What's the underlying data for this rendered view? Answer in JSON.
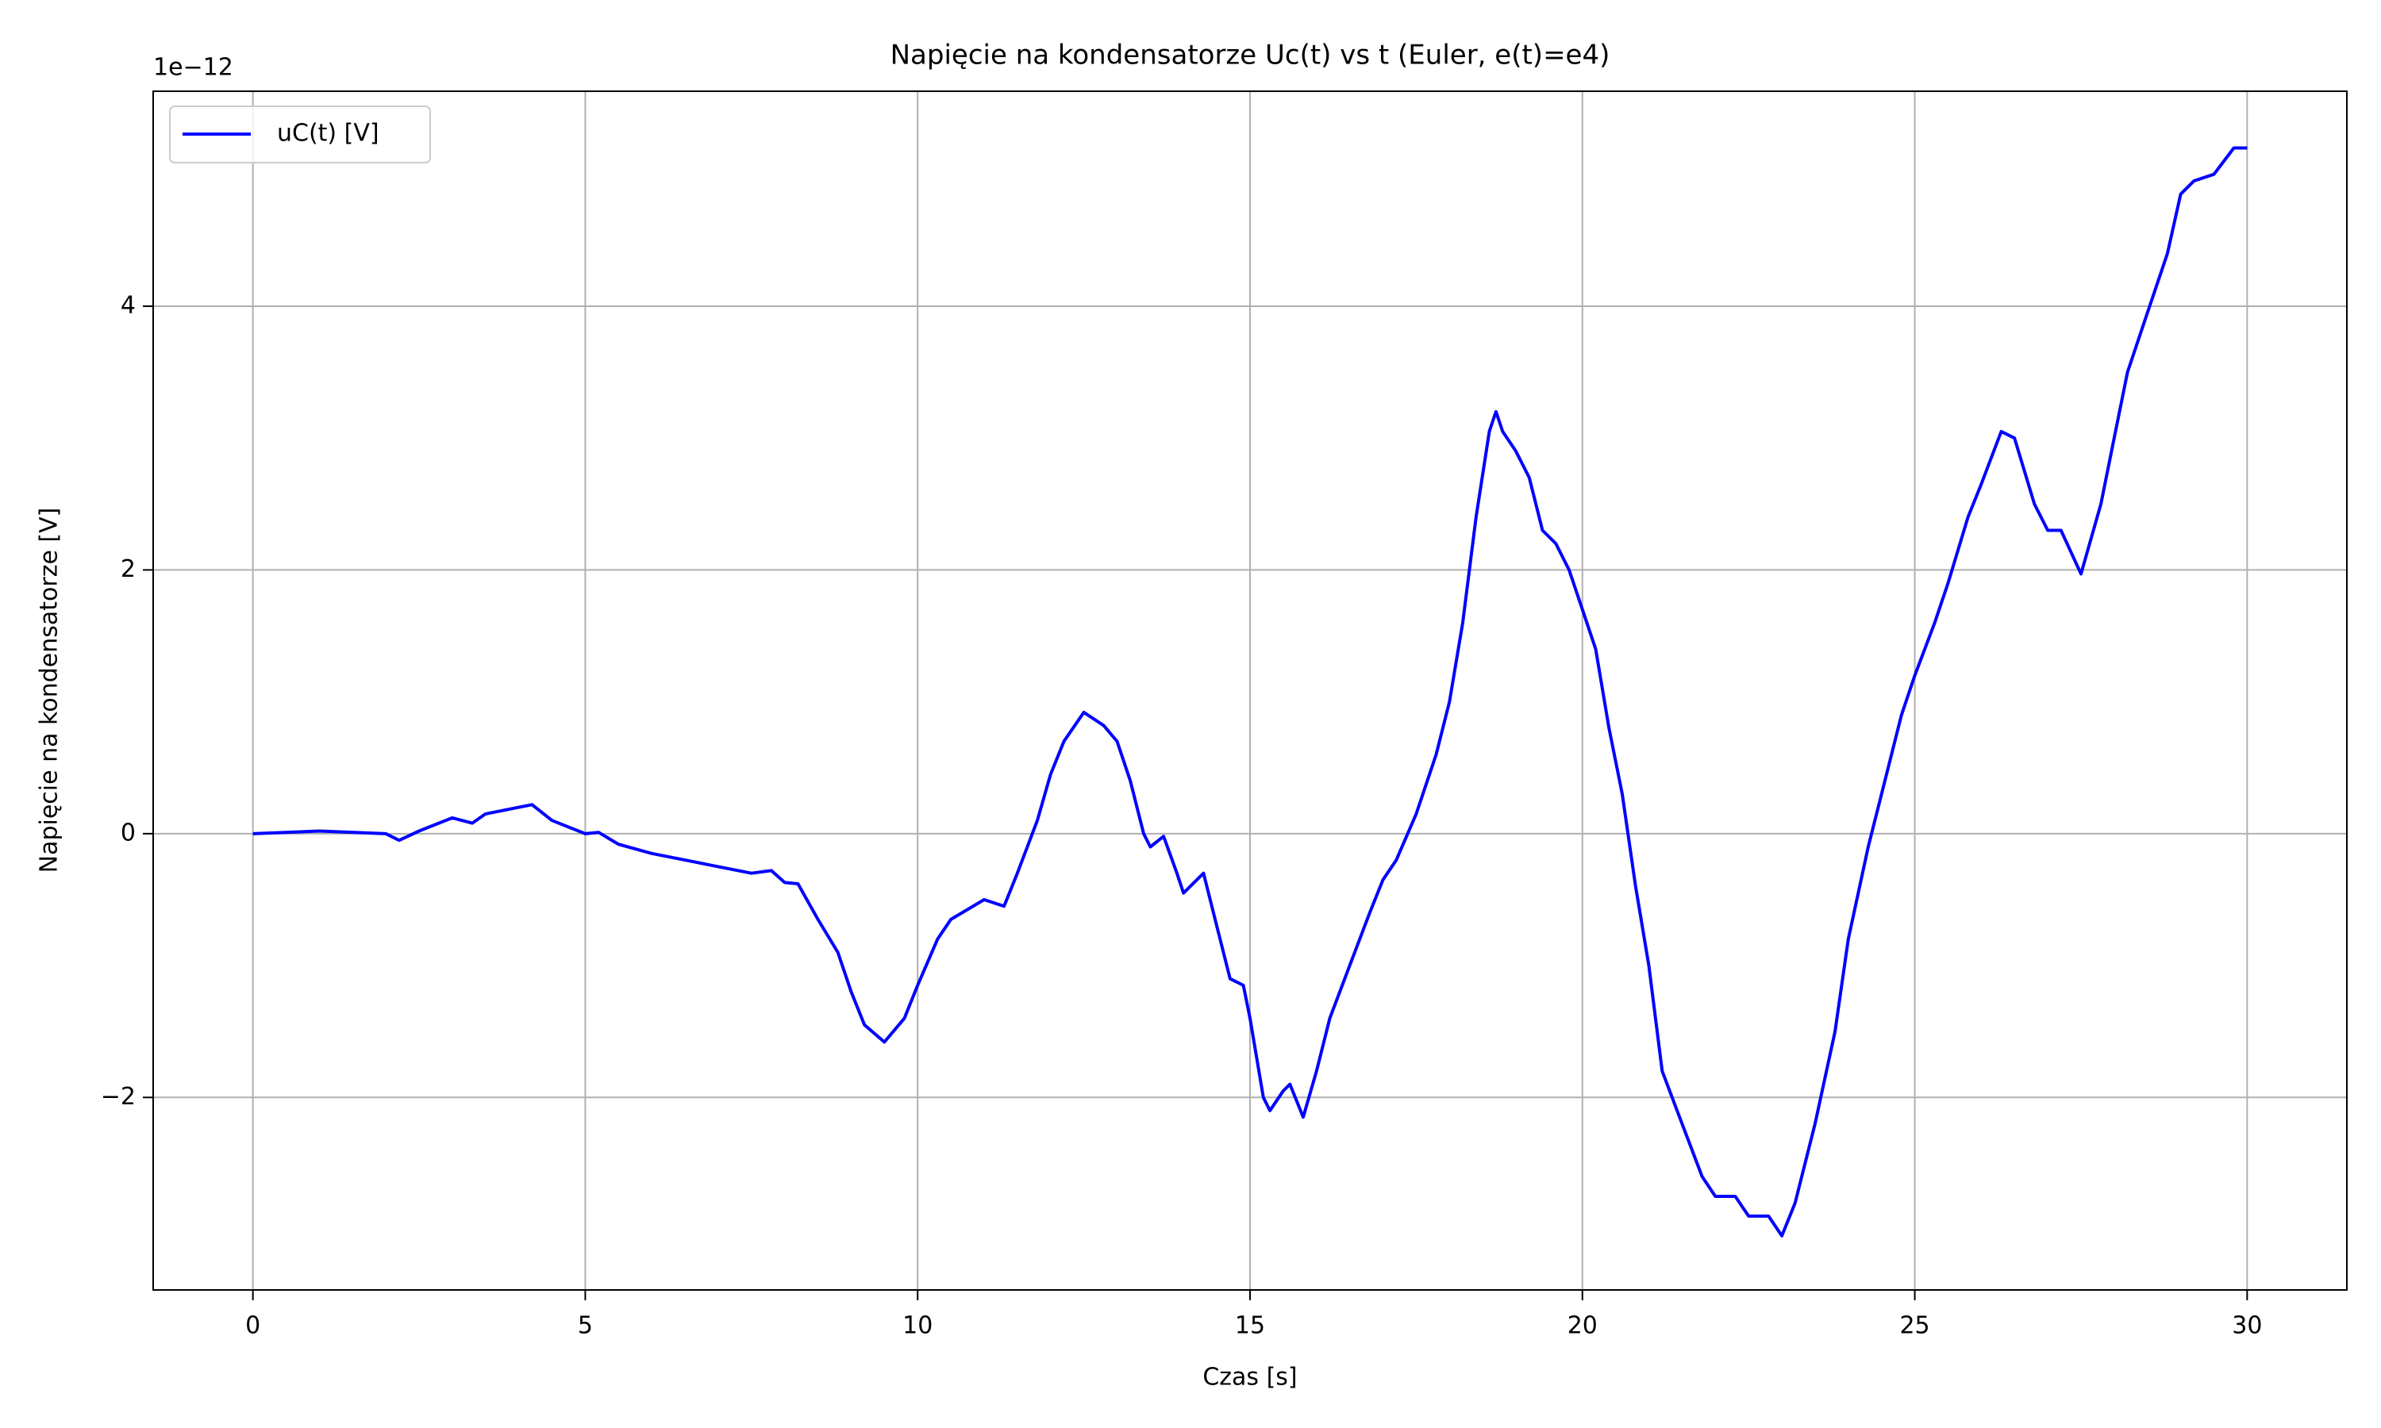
{
  "chart_data": {
    "type": "line",
    "title": "Napięcie na kondensatorze Uc(t) vs t (Euler, e(t)=e4)",
    "x_label": "Czas [s]",
    "y_label": "Napięcie na kondensatorze [V]",
    "y_offset_label": "1e−12",
    "x": [
      0,
      1,
      2,
      2.2,
      2.5,
      3,
      3.3,
      3.5,
      4,
      4.2,
      4.5,
      5,
      5.2,
      5.5,
      6,
      6.5,
      7,
      7.5,
      7.8,
      8,
      8.2,
      8.5,
      8.8,
      9,
      9.2,
      9.5,
      9.8,
      10,
      10.3,
      10.5,
      11,
      11.3,
      11.5,
      11.8,
      12,
      12.2,
      12.5,
      12.8,
      13,
      13.2,
      13.4,
      13.5,
      13.7,
      13.9,
      14,
      14.3,
      14.5,
      14.7,
      14.9,
      15,
      15.2,
      15.3,
      15.5,
      15.6,
      15.8,
      16,
      16.2,
      16.5,
      16.8,
      17,
      17.2,
      17.5,
      17.8,
      18,
      18.2,
      18.4,
      18.6,
      18.7,
      18.8,
      19,
      19.2,
      19.4,
      19.6,
      19.8,
      20,
      20.2,
      20.4,
      20.6,
      20.8,
      21,
      21.2,
      21.5,
      21.8,
      22,
      22.3,
      22.5,
      22.8,
      23,
      23.2,
      23.5,
      23.8,
      24,
      24.3,
      24.5,
      24.8,
      25,
      25.3,
      25.5,
      25.8,
      26,
      26.3,
      26.5,
      26.8,
      27,
      27.2,
      27.5,
      27.8,
      28,
      28.2,
      28.5,
      28.8,
      29,
      29.2,
      29.5,
      29.8,
      30
    ],
    "series": [
      {
        "name": "uC(t) [V]",
        "color": "#0000ff",
        "values": [
          0,
          0.02,
          0,
          -0.05,
          0.02,
          0.12,
          0.08,
          0.15,
          0.2,
          0.22,
          0.1,
          0,
          0.01,
          -0.08,
          -0.15,
          -0.2,
          -0.25,
          -0.3,
          -0.28,
          -0.37,
          -0.38,
          -0.65,
          -0.9,
          -1.2,
          -1.45,
          -1.58,
          -1.4,
          -1.15,
          -0.8,
          -0.65,
          -0.5,
          -0.55,
          -0.3,
          0.1,
          0.45,
          0.7,
          0.92,
          0.82,
          0.7,
          0.4,
          0.0,
          -0.1,
          -0.02,
          -0.3,
          -0.45,
          -0.3,
          -0.7,
          -1.1,
          -1.15,
          -1.4,
          -2.0,
          -2.1,
          -1.95,
          -1.9,
          -2.15,
          -1.8,
          -1.4,
          -1.0,
          -0.6,
          -0.35,
          -0.2,
          0.15,
          0.6,
          1.0,
          1.6,
          2.4,
          3.05,
          3.2,
          3.05,
          2.9,
          2.7,
          2.3,
          2.2,
          2.0,
          1.7,
          1.4,
          0.8,
          0.3,
          -0.4,
          -1.0,
          -1.8,
          -2.2,
          -2.6,
          -2.75,
          -2.75,
          -2.9,
          -2.9,
          -3.05,
          -2.8,
          -2.2,
          -1.5,
          -0.8,
          -0.1,
          0.3,
          0.9,
          1.2,
          1.6,
          1.9,
          2.4,
          2.65,
          3.05,
          3.0,
          2.5,
          2.3,
          2.3,
          1.97,
          2.5,
          3.0,
          3.5,
          3.95,
          4.4,
          4.85,
          4.95,
          5.0,
          5.2,
          5.2
        ]
      }
    ],
    "xlim": [
      -1.5,
      31.5
    ],
    "ylim": [
      -3.46,
      5.63
    ],
    "xticks": [
      0,
      5,
      10,
      15,
      20,
      25,
      30
    ],
    "yticks": [
      {
        "value": -2,
        "label": "−2"
      },
      0,
      2,
      4
    ],
    "grid": true,
    "legend": "upper left"
  }
}
